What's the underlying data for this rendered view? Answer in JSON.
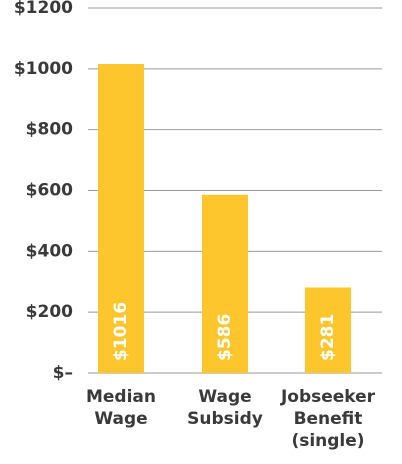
{
  "chart_data": {
    "type": "bar",
    "categories": [
      "Median Wage",
      "Wage Subsidy",
      "Jobseeker Benefit (single)"
    ],
    "values": [
      1016,
      586,
      281
    ],
    "value_labels": [
      "$1016",
      "$586",
      "$281"
    ],
    "color": "#fcc62c",
    "ylim": [
      0,
      1200
    ],
    "yticks": [
      {
        "value": 0,
        "label": "$–"
      },
      {
        "value": 200,
        "label": "$200"
      },
      {
        "value": 400,
        "label": "$400"
      },
      {
        "value": 600,
        "label": "$600"
      },
      {
        "value": 800,
        "label": "$800"
      },
      {
        "value": 1000,
        "label": "$1000"
      },
      {
        "value": 1200,
        "label": "$1200"
      }
    ],
    "grid": true
  }
}
